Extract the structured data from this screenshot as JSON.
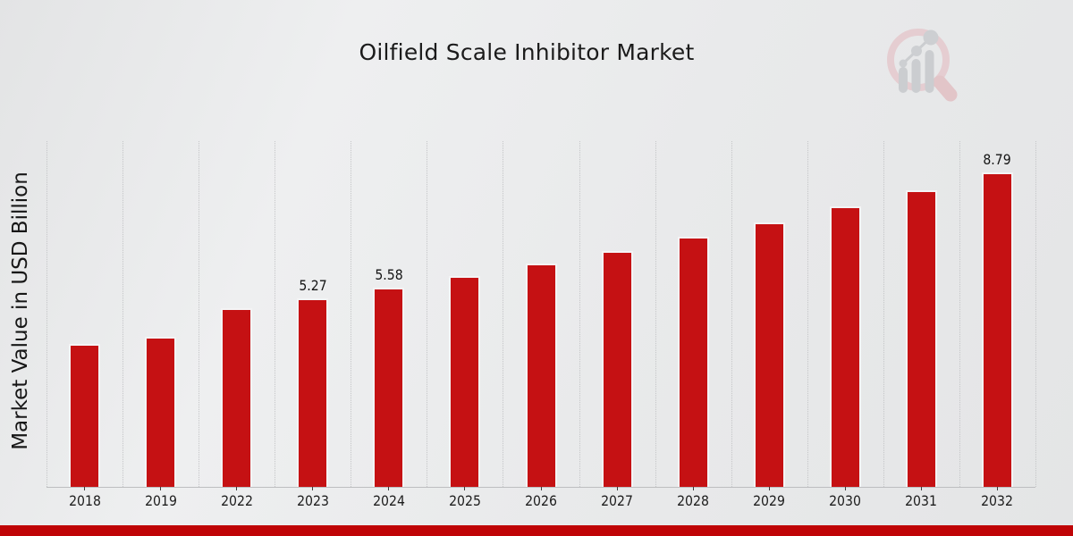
{
  "page": {
    "title": "Oilfield Scale Inhibitor Market"
  },
  "branding": {
    "logo_icon": "magnifier-bar-chart-watermark-icon",
    "ring_color": "#e5c9cd",
    "handle_color": "#e2bfc3",
    "glyph_gray": "#c7c9cc",
    "footer_bar_color": "#bf0406"
  },
  "chart_data": {
    "type": "bar",
    "title": "Oilfield Scale Inhibitor Market",
    "xlabel": "",
    "ylabel": "Market Value in USD Billion",
    "categories": [
      "2018",
      "2019",
      "2022",
      "2023",
      "2024",
      "2025",
      "2026",
      "2027",
      "2028",
      "2029",
      "2030",
      "2031",
      "2032"
    ],
    "values": [
      4.0,
      4.2,
      5.0,
      5.27,
      5.58,
      5.9,
      6.25,
      6.6,
      7.0,
      7.4,
      7.85,
      8.3,
      8.79
    ],
    "data_labels": [
      "",
      "",
      "",
      "5.27",
      "5.58",
      "",
      "",
      "",
      "",
      "",
      "",
      "",
      "8.79"
    ],
    "bar_color": "#c51113",
    "bar_edge_color": "#f4f4f5",
    "ylim": [
      0,
      9.67
    ],
    "grid": "vertical dotted lines at category boundaries",
    "legend": "none",
    "unit": "USD Billion"
  }
}
